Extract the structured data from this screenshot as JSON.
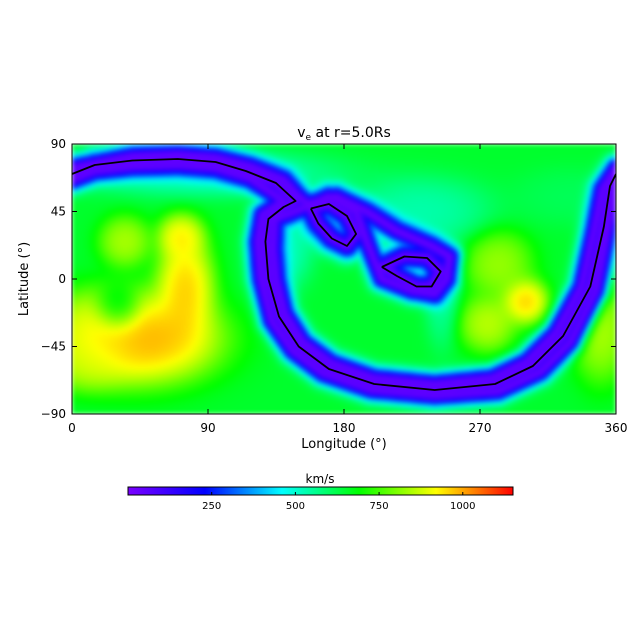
{
  "chart_data": {
    "type": "heatmap",
    "title": "v",
    "title_subscript": "e",
    "title_suffix": " at r=5.0Rs",
    "xlabel": "Longitude (°)",
    "ylabel": "Latitude (°)",
    "xlim": [
      0,
      360
    ],
    "ylim": [
      -90,
      90
    ],
    "x_ticks": [
      0,
      90,
      180,
      270,
      360
    ],
    "x_tick_labels": [
      "0",
      "90",
      "180",
      "270",
      "360"
    ],
    "y_ticks": [
      90,
      45,
      0,
      -45,
      -90
    ],
    "y_tick_labels": [
      "90",
      "45",
      "0",
      "−45",
      "−90"
    ],
    "grid": false,
    "colorbar": {
      "label": "km/s",
      "range": [
        0,
        1150
      ],
      "ticks": [
        250,
        500,
        750,
        1000
      ],
      "tick_labels": [
        "250",
        "500",
        "750",
        "1000"
      ],
      "colors": [
        "#7a00ff",
        "#0000ff",
        "#00ffff",
        "#00ff00",
        "#ffff00",
        "#ff0000"
      ]
    },
    "background_value": 650,
    "blobs": [
      {
        "lon": 45,
        "lat": -40,
        "value": 1100,
        "sigma_lon": 28,
        "sigma_lat": 16
      },
      {
        "lon": 18,
        "lat": -35,
        "value": 920,
        "sigma_lon": 18,
        "sigma_lat": 14
      },
      {
        "lon": 75,
        "lat": -5,
        "value": 1050,
        "sigma_lon": 10,
        "sigma_lat": 18
      },
      {
        "lon": 72,
        "lat": 28,
        "value": 1000,
        "sigma_lon": 8,
        "sigma_lat": 8
      },
      {
        "lon": 35,
        "lat": 25,
        "value": 900,
        "sigma_lon": 9,
        "sigma_lat": 9
      },
      {
        "lon": 30,
        "lat": -20,
        "value": 520,
        "sigma_lon": 8,
        "sigma_lat": 8
      },
      {
        "lon": 300,
        "lat": -15,
        "value": 1050,
        "sigma_lon": 8,
        "sigma_lat": 8
      },
      {
        "lon": 275,
        "lat": -30,
        "value": 920,
        "sigma_lon": 10,
        "sigma_lat": 10
      },
      {
        "lon": 282,
        "lat": 10,
        "value": 880,
        "sigma_lon": 12,
        "sigma_lat": 12
      },
      {
        "lon": 350,
        "lat": -35,
        "value": 900,
        "sigma_lon": 10,
        "sigma_lat": 18
      },
      {
        "lon": 10,
        "lat": -55,
        "value": 900,
        "sigma_lon": 14,
        "sigma_lat": 10
      },
      {
        "lon": 140,
        "lat": 20,
        "value": 480,
        "sigma_lon": 10,
        "sigma_lat": 14
      },
      {
        "lon": 230,
        "lat": 45,
        "value": 500,
        "sigma_lon": 25,
        "sigma_lat": 12
      },
      {
        "lon": 90,
        "lat": 70,
        "value": 480,
        "sigma_lon": 45,
        "sigma_lat": 8
      },
      {
        "lon": 330,
        "lat": 55,
        "value": 600,
        "sigma_lon": 20,
        "sigma_lat": 10
      },
      {
        "lon": 245,
        "lat": -10,
        "value": 520,
        "sigma_lon": 6,
        "sigma_lat": 18
      }
    ],
    "neutral_line": [
      [
        [
          0,
          70
        ],
        [
          15,
          76
        ],
        [
          40,
          79
        ],
        [
          70,
          80
        ],
        [
          95,
          78
        ],
        [
          115,
          72
        ],
        [
          135,
          64
        ],
        [
          148,
          52
        ],
        [
          140,
          48
        ],
        [
          130,
          40
        ],
        [
          128,
          25
        ],
        [
          130,
          0
        ],
        [
          137,
          -25
        ],
        [
          150,
          -45
        ],
        [
          170,
          -60
        ],
        [
          200,
          -70
        ],
        [
          240,
          -74
        ],
        [
          280,
          -70
        ],
        [
          305,
          -58
        ],
        [
          325,
          -38
        ],
        [
          343,
          -5
        ],
        [
          352,
          35
        ],
        [
          356,
          62
        ],
        [
          360,
          70
        ]
      ],
      [
        [
          158,
          47
        ],
        [
          170,
          50
        ],
        [
          182,
          42
        ],
        [
          188,
          30
        ],
        [
          182,
          22
        ],
        [
          172,
          27
        ],
        [
          163,
          37
        ],
        [
          158,
          47
        ]
      ],
      [
        [
          205,
          8
        ],
        [
          220,
          15
        ],
        [
          235,
          14
        ],
        [
          244,
          5
        ],
        [
          238,
          -5
        ],
        [
          228,
          -5
        ],
        [
          215,
          2
        ],
        [
          205,
          8
        ]
      ]
    ],
    "neutral_line_band": [
      [
        [
          0,
          74
        ],
        [
          40,
          82
        ],
        [
          70,
          83
        ],
        [
          95,
          81
        ],
        [
          118,
          75
        ],
        [
          140,
          66
        ],
        [
          150,
          55
        ],
        [
          156,
          50
        ],
        [
          175,
          55
        ],
        [
          195,
          45
        ],
        [
          215,
          32
        ],
        [
          238,
          22
        ],
        [
          250,
          15
        ],
        [
          248,
          0
        ],
        [
          240,
          -10
        ],
        [
          225,
          -8
        ],
        [
          205,
          0
        ],
        [
          195,
          25
        ],
        [
          188,
          45
        ],
        [
          170,
          55
        ],
        [
          150,
          46
        ],
        [
          134,
          40
        ],
        [
          133,
          20
        ],
        [
          135,
          0
        ],
        [
          141,
          -23
        ],
        [
          153,
          -42
        ],
        [
          172,
          -56
        ],
        [
          200,
          -66
        ],
        [
          240,
          -70
        ],
        [
          278,
          -66
        ],
        [
          301,
          -55
        ],
        [
          320,
          -36
        ],
        [
          337,
          -5
        ],
        [
          346,
          35
        ],
        [
          351,
          60
        ],
        [
          360,
          74
        ],
        [
          360,
          62
        ],
        [
          354,
          30
        ],
        [
          347,
          -8
        ],
        [
          330,
          -42
        ],
        [
          310,
          -62
        ],
        [
          282,
          -75
        ],
        [
          240,
          -78
        ],
        [
          198,
          -74
        ],
        [
          166,
          -63
        ],
        [
          146,
          -48
        ],
        [
          132,
          -28
        ],
        [
          125,
          0
        ],
        [
          123,
          25
        ],
        [
          126,
          43
        ],
        [
          140,
          52
        ],
        [
          118,
          67
        ],
        [
          95,
          74
        ],
        [
          70,
          76
        ],
        [
          40,
          75
        ],
        [
          15,
          72
        ],
        [
          0,
          66
        ]
      ]
    ]
  }
}
